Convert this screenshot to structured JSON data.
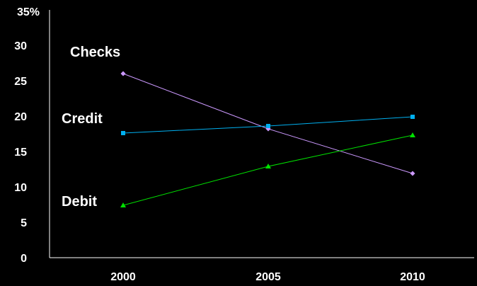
{
  "chart_data": {
    "type": "line",
    "title": "",
    "xlabel": "",
    "ylabel": "",
    "x": [
      2000,
      2005,
      2010
    ],
    "xtick_labels": [
      "2000",
      "2005",
      "2010"
    ],
    "ytick_labels": [
      "0",
      "5",
      "10",
      "15",
      "20",
      "25",
      "30",
      "35%"
    ],
    "ylim": [
      0,
      35
    ],
    "grid": false,
    "series": [
      {
        "name": "Checks",
        "color": "#cc99ff",
        "marker": "diamond",
        "values": [
          26,
          18.2,
          11.9
        ]
      },
      {
        "name": "Credit",
        "color": "#00b0f0",
        "marker": "square",
        "values": [
          17.6,
          18.6,
          19.9
        ]
      },
      {
        "name": "Debit",
        "color": "#00e000",
        "marker": "triangle",
        "values": [
          7.4,
          12.9,
          17.3
        ]
      }
    ]
  }
}
